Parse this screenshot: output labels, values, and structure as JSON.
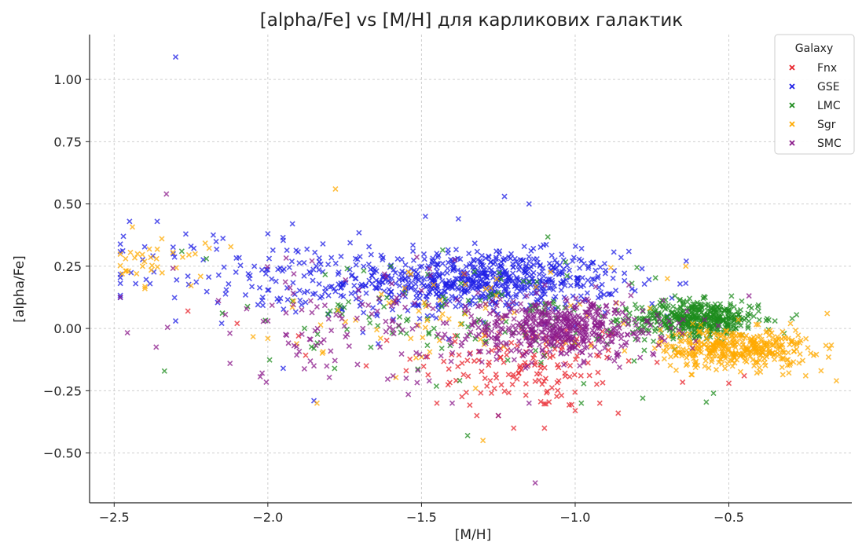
{
  "chart_data": {
    "type": "scatter",
    "title": "[alpha/Fe] vs [M/H] для карликових галактик",
    "xlabel": "[M/H]",
    "ylabel": "[alpha/Fe]",
    "xlim": [
      -2.58,
      -0.1
    ],
    "ylim": [
      -0.7,
      1.18
    ],
    "x_ticks": [
      -2.5,
      -2.0,
      -1.5,
      -1.0,
      -0.5
    ],
    "x_tick_labels": [
      "−2.5",
      "−2.0",
      "−1.5",
      "−1.0",
      "−0.5"
    ],
    "y_ticks": [
      -0.5,
      -0.25,
      0.0,
      0.25,
      0.5,
      0.75,
      1.0
    ],
    "y_tick_labels": [
      "−0.50",
      "−0.25",
      "0.00",
      "0.25",
      "0.50",
      "0.75",
      "1.00"
    ],
    "grid": true,
    "marker": "x",
    "legend": {
      "title": "Galaxy",
      "placement": "top-right"
    },
    "series": [
      {
        "name": "Fnx",
        "color": "#e8232b",
        "distribution": "density-cloud",
        "clusters": [
          {
            "x": [
              -1.15,
              0.18
            ],
            "y": [
              -0.15,
              0.09
            ],
            "n": 150
          }
        ],
        "points": [
          [
            -1.2,
            -0.4
          ],
          [
            -1.1,
            -0.4
          ],
          [
            -1.25,
            -0.35
          ],
          [
            -1.45,
            -0.3
          ],
          [
            -1.32,
            -0.35
          ],
          [
            -0.5,
            -0.22
          ],
          [
            -0.45,
            -0.19
          ],
          [
            -1.0,
            -0.33
          ],
          [
            -0.92,
            -0.3
          ],
          [
            -0.86,
            -0.34
          ],
          [
            -1.9,
            -0.03
          ],
          [
            -2.1,
            0.02
          ],
          [
            -2.26,
            0.07
          ],
          [
            -1.68,
            -0.15
          ],
          [
            -1.55,
            -0.17
          ]
        ]
      },
      {
        "name": "GSE",
        "color": "#1f1fe6",
        "distribution": "density-cloud",
        "clusters": [
          {
            "x": [
              -1.3,
              0.22
            ],
            "y": [
              0.19,
              0.06
            ],
            "n": 650
          },
          {
            "x": [
              -1.95,
              0.28
            ],
            "y": [
              0.22,
              0.09
            ],
            "n": 150
          }
        ],
        "points": [
          [
            -2.3,
            1.09
          ],
          [
            -2.47,
            0.37
          ],
          [
            -2.45,
            0.43
          ],
          [
            -2.36,
            0.43
          ],
          [
            -2.43,
            0.18
          ],
          [
            -2.3,
            0.03
          ],
          [
            -1.23,
            0.53
          ],
          [
            -1.15,
            0.5
          ],
          [
            -1.38,
            0.44
          ],
          [
            -1.92,
            0.42
          ],
          [
            -1.85,
            -0.29
          ],
          [
            -1.95,
            -0.16
          ],
          [
            -1.7,
            0.09
          ],
          [
            -2.0,
            0.38
          ],
          [
            -0.75,
            0.1
          ],
          [
            -0.7,
            0.05
          ],
          [
            -2.25,
            0.33
          ]
        ]
      },
      {
        "name": "LMC",
        "color": "#1e8c1e",
        "distribution": "density-cloud",
        "clusters": [
          {
            "x": [
              -0.6,
              0.1
            ],
            "y": [
              0.04,
              0.035
            ],
            "n": 450
          },
          {
            "x": [
              -1.3,
              0.35
            ],
            "y": [
              0.05,
              0.12
            ],
            "n": 140
          }
        ],
        "points": [
          [
            -1.35,
            -0.43
          ],
          [
            -0.78,
            -0.28
          ],
          [
            -0.55,
            -0.26
          ],
          [
            -0.98,
            -0.3
          ],
          [
            -1.85,
            -0.08
          ],
          [
            -2.2,
            0.28
          ],
          [
            -2.28,
            0.31
          ],
          [
            -1.6,
            0.25
          ],
          [
            -0.35,
            0.03
          ],
          [
            -0.32,
            -0.02
          ]
        ]
      },
      {
        "name": "Sgr",
        "color": "#ffaa00",
        "distribution": "density-cloud",
        "clusters": [
          {
            "x": [
              -0.48,
              0.12
            ],
            "y": [
              -0.08,
              0.04
            ],
            "n": 380
          },
          {
            "x": [
              -2.35,
              0.08
            ],
            "y": [
              0.27,
              0.05
            ],
            "n": 35
          },
          {
            "x": [
              -1.35,
              0.3
            ],
            "y": [
              0.05,
              0.1
            ],
            "n": 70
          }
        ],
        "points": [
          [
            -1.78,
            0.56
          ],
          [
            -0.64,
            0.25
          ],
          [
            -0.18,
            0.06
          ],
          [
            -0.15,
            -0.21
          ],
          [
            -0.2,
            -0.17
          ],
          [
            -1.84,
            -0.3
          ],
          [
            -1.3,
            -0.45
          ],
          [
            -2.4,
            0.16
          ],
          [
            -0.25,
            -0.19
          ],
          [
            -0.3,
            -0.14
          ],
          [
            -0.7,
            0.2
          ],
          [
            -2.0,
            -0.04
          ]
        ]
      },
      {
        "name": "SMC",
        "color": "#8b1a8b",
        "distribution": "density-cloud",
        "clusters": [
          {
            "x": [
              -1.05,
              0.17
            ],
            "y": [
              0.0,
              0.06
            ],
            "n": 500
          },
          {
            "x": [
              -1.7,
              0.3
            ],
            "y": [
              0.03,
              0.12
            ],
            "n": 120
          }
        ],
        "points": [
          [
            -2.33,
            0.54
          ],
          [
            -1.13,
            -0.62
          ],
          [
            -1.25,
            -0.35
          ],
          [
            -1.4,
            -0.3
          ],
          [
            -1.55,
            -0.2
          ],
          [
            -1.85,
            -0.15
          ],
          [
            -2.0,
            0.03
          ],
          [
            -1.15,
            -0.3
          ]
        ]
      }
    ]
  }
}
